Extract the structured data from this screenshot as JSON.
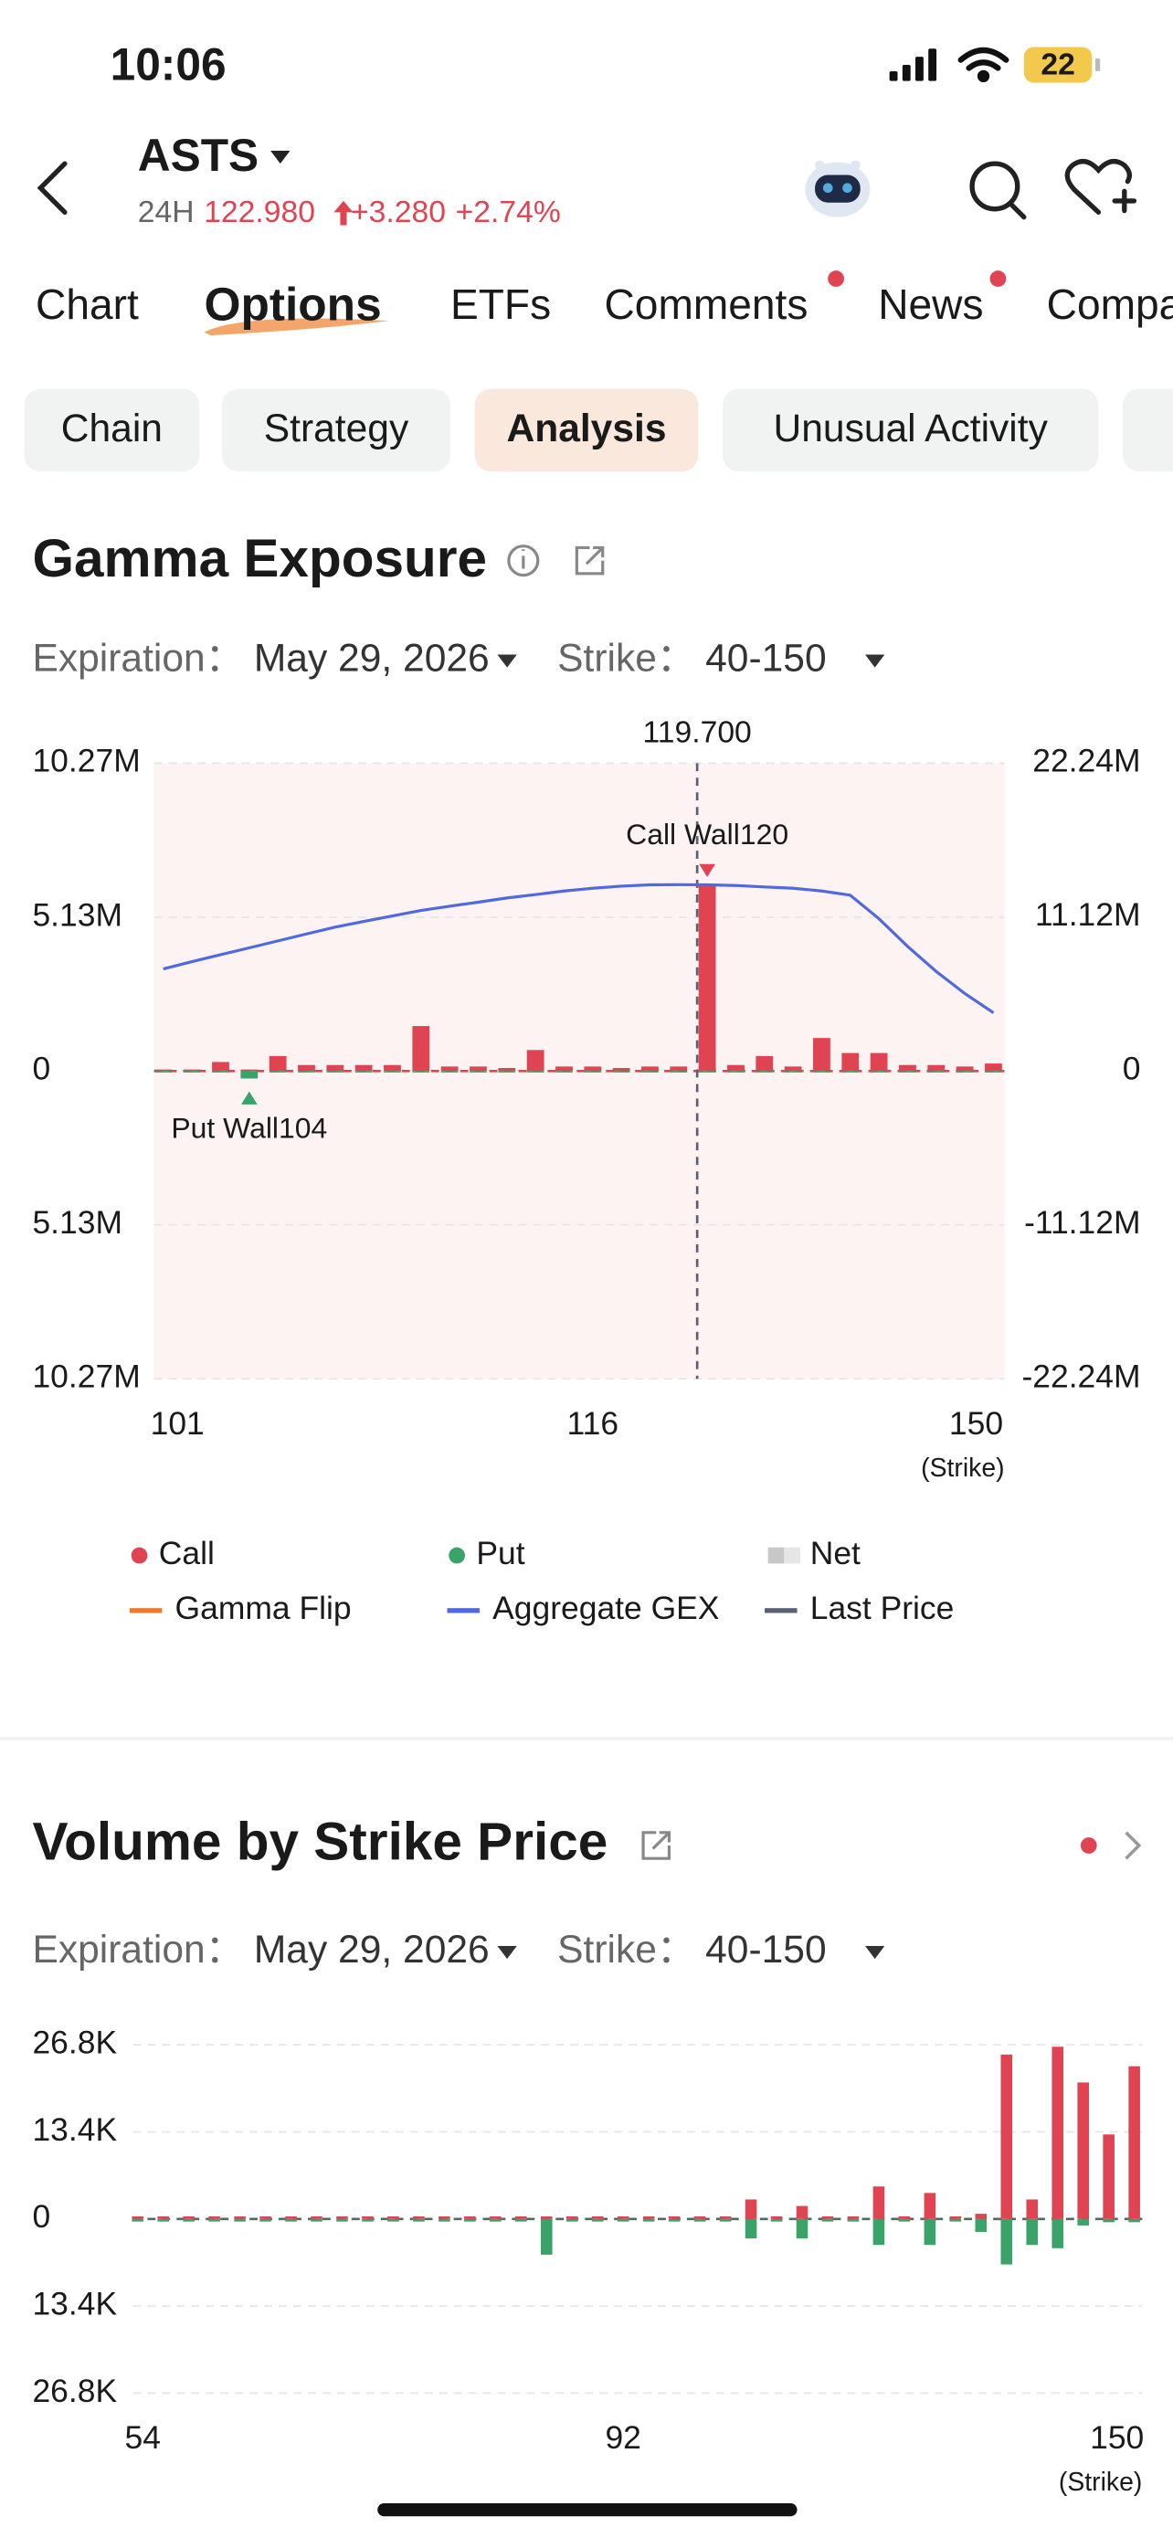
{
  "status_bar": {
    "time": "10:06",
    "battery": "22"
  },
  "header": {
    "symbol": "ASTS",
    "session": "24H",
    "price": "122.980",
    "change": "+3.280",
    "change_percent": "+2.74%"
  },
  "tabs": [
    "Chart",
    "Options",
    "ETFs",
    "Comments",
    "News",
    "Company"
  ],
  "sub_tabs": [
    "Chain",
    "Strategy",
    "Analysis",
    "Unusual Activity"
  ],
  "gamma_exposure": {
    "title": "Gamma Exposure",
    "expiration_label": "Expiration：",
    "expiration": "May 29, 2026",
    "strike_label": "Strike：",
    "strike": "40-150",
    "chart": {
      "type": "bar",
      "categories": [
        101,
        null,
        null,
        null,
        null,
        null,
        null,
        null,
        null,
        null,
        null,
        null,
        null,
        null,
        null,
        116,
        null,
        null,
        null,
        null,
        null,
        null,
        null,
        null,
        null,
        null,
        null,
        null,
        null,
        150
      ],
      "x_axis_label": "(Strike)",
      "series": [
        {
          "name": "Call",
          "color": "#e04352",
          "values": [
            0.05,
            0.05,
            0.3,
            0.05,
            0.5,
            0.2,
            0.2,
            0.2,
            0.2,
            1.5,
            0.15,
            0.15,
            0.1,
            0.7,
            0.15,
            0.15,
            0.1,
            0.15,
            0.15,
            6.2,
            0.2,
            0.5,
            0.15,
            1.1,
            0.6,
            0.6,
            0.2,
            0.2,
            0.15,
            0.25
          ]
        },
        {
          "name": "Put",
          "color": "#3aa36a",
          "values": [
            -0.05,
            -0.05,
            -0.05,
            -0.25,
            -0.05,
            -0.05,
            -0.05,
            -0.05,
            -0.05,
            -0.05,
            -0.05,
            -0.05,
            -0.05,
            -0.05,
            -0.05,
            -0.05,
            -0.05,
            -0.05,
            -0.05,
            -0.05,
            -0.05,
            -0.05,
            -0.05,
            -0.05,
            -0.05,
            -0.05,
            -0.05,
            -0.05,
            -0.05,
            -0.05
          ]
        },
        {
          "name": "Aggregate GEX",
          "color": "#5068e0",
          "type": "line",
          "axis": "y2",
          "values": [
            7.37,
            7.9,
            8.4,
            8.9,
            9.4,
            9.9,
            10.4,
            10.8,
            11.2,
            11.6,
            11.9,
            12.2,
            12.5,
            12.75,
            13.0,
            13.2,
            13.35,
            13.45,
            13.46,
            13.45,
            13.4,
            13.3,
            13.2,
            13.0,
            12.7,
            11.0,
            9.0,
            7.2,
            5.6,
            4.2
          ]
        }
      ],
      "ylim": [
        -10.27,
        10.27
      ],
      "yticks": [
        {
          "value": 10.27,
          "label": "10.27M"
        },
        {
          "value": 5.13,
          "label": "5.13M"
        },
        0,
        {
          "value": -5.13,
          "label": "5.13M"
        },
        {
          "value": -10.27,
          "label": "10.27M"
        }
      ],
      "y2lim": [
        -22.24,
        22.24
      ],
      "y2ticks": [
        {
          "value": 22.24,
          "label": "22.24M"
        },
        {
          "value": 11.12,
          "label": "11.12M"
        },
        0,
        {
          "value": -11.12,
          "label": "-11.12M"
        },
        {
          "value": -22.24,
          "label": "-22.24M"
        }
      ],
      "grid": true,
      "baseline_color": "#e04352",
      "plot_background": "#fdf3f3",
      "last_price": "119.700",
      "last_price_color": "#5b5f73",
      "call_wall": "Call Wall120",
      "put_wall": "Put Wall104",
      "legend_extra": [
        {
          "name": "Net",
          "color": "#c8c8c8"
        },
        {
          "name": "Gamma Flip",
          "color": "#ef7a2e"
        },
        {
          "name": "Last Price",
          "color": "#5b5f73"
        }
      ]
    }
  },
  "volume_by_strike": {
    "title": "Volume by Strike Price",
    "expiration_label": "Expiration：",
    "expiration": "May 29, 2026",
    "strike_label": "Strike：",
    "strike": "40-150",
    "chart": {
      "type": "bar",
      "categories": [
        54,
        null,
        null,
        null,
        null,
        null,
        null,
        null,
        null,
        null,
        null,
        null,
        null,
        null,
        null,
        null,
        null,
        null,
        null,
        92,
        null,
        null,
        null,
        null,
        null,
        null,
        null,
        null,
        null,
        null,
        null,
        null,
        null,
        null,
        null,
        null,
        null,
        null,
        null,
        150
      ],
      "x_axis_label": "(Strike)",
      "series": [
        {
          "color": "#e04352",
          "values": [
            0.4,
            0.4,
            0.4,
            0.4,
            0.4,
            0.4,
            0.4,
            0.4,
            0.4,
            0.4,
            0.4,
            0.4,
            0.4,
            0.4,
            0.4,
            0.4,
            0.4,
            0.4,
            0.4,
            0.4,
            0.4,
            0.4,
            0.4,
            0.4,
            3,
            0.4,
            2,
            0.4,
            0.4,
            5,
            0.4,
            4,
            0.4,
            0.8,
            25.3,
            3,
            26.5,
            21,
            13,
            23.5
          ]
        },
        {
          "color": "#3aa36a",
          "values": [
            -0.4,
            -0.4,
            -0.4,
            -0.4,
            -0.4,
            -0.4,
            -0.4,
            -0.4,
            -0.4,
            -0.4,
            -0.4,
            -0.4,
            -0.4,
            -0.4,
            -0.4,
            -0.4,
            -5.5,
            -0.4,
            -0.4,
            -0.4,
            -0.4,
            -0.4,
            -0.4,
            -0.4,
            -3,
            -0.4,
            -3,
            -0.4,
            -0.4,
            -4,
            -0.4,
            -4,
            -0.4,
            -2,
            -7,
            -4,
            -4.5,
            -1,
            -0.5,
            -0.5
          ]
        }
      ],
      "ylim": [
        -26.8,
        26.8
      ],
      "yticks": [
        {
          "value": 26.8,
          "label": "26.8K"
        },
        {
          "value": 13.4,
          "label": "13.4K"
        },
        0,
        {
          "value": -13.4,
          "label": "13.4K"
        },
        {
          "value": -26.8,
          "label": "26.8K"
        }
      ],
      "grid": true,
      "baseline_color": "#4f6b5a"
    }
  }
}
